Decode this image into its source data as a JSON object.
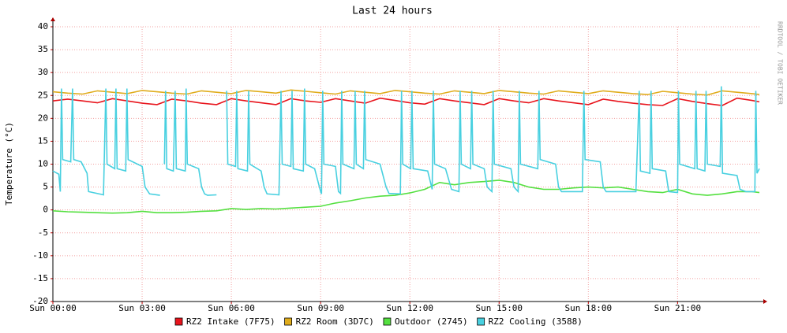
{
  "chart_data": {
    "type": "line",
    "title": "Last 24 hours",
    "y_label": "Temperature (°C)",
    "side_text": "RRDTOOL / TOBI OETIKER",
    "xlim": [
      0,
      23.75
    ],
    "ylim": [
      -20,
      40
    ],
    "xticks": [
      {
        "value": 0,
        "label": "Sun 00:00"
      },
      {
        "value": 3,
        "label": "Sun 03:00"
      },
      {
        "value": 6,
        "label": "Sun 06:00"
      },
      {
        "value": 9,
        "label": "Sun 09:00"
      },
      {
        "value": 12,
        "label": "Sun 12:00"
      },
      {
        "value": 15,
        "label": "Sun 15:00"
      },
      {
        "value": 18,
        "label": "Sun 18:00"
      },
      {
        "value": 21,
        "label": "Sun 21:00"
      }
    ],
    "yticks": [
      -20,
      -15,
      -10,
      -5,
      0,
      5,
      10,
      15,
      20,
      25,
      30,
      35,
      40
    ],
    "grid": true,
    "series": [
      {
        "name": "RZ2 Intake (7F75)",
        "color": "#e8141c",
        "x": [
          0,
          0.5,
          1,
          1.5,
          2,
          2.5,
          3,
          3.5,
          4,
          4.5,
          5,
          5.5,
          6,
          6.5,
          7,
          7.5,
          8,
          8.5,
          9,
          9.5,
          10,
          10.5,
          11,
          11.5,
          12,
          12.5,
          13,
          13.5,
          14,
          14.5,
          15,
          15.5,
          16,
          16.5,
          17,
          17.5,
          18,
          18.5,
          19,
          19.5,
          20,
          20.5,
          21,
          21.5,
          22,
          22.5,
          23,
          23.5,
          23.75
        ],
        "values": [
          23.8,
          24.2,
          23.8,
          23.4,
          24.3,
          23.8,
          23.3,
          23.0,
          24.2,
          23.8,
          23.3,
          23.0,
          24.3,
          23.8,
          23.4,
          23.0,
          24.3,
          23.8,
          23.5,
          24.3,
          23.8,
          23.3,
          24.4,
          23.9,
          23.4,
          23.1,
          24.3,
          23.8,
          23.4,
          23.0,
          24.3,
          23.8,
          23.4,
          24.3,
          23.8,
          23.4,
          23.0,
          24.2,
          23.7,
          23.3,
          23.0,
          22.8,
          24.3,
          23.7,
          23.2,
          22.8,
          24.4,
          23.9,
          23.6
        ]
      },
      {
        "name": "RZ2 Room (3D7C)",
        "color": "#e0ac1c",
        "x": [
          0,
          0.5,
          1,
          1.5,
          2,
          2.5,
          3,
          3.5,
          4,
          4.5,
          5,
          5.5,
          6,
          6.5,
          7,
          7.5,
          8,
          8.5,
          9,
          9.5,
          10,
          10.5,
          11,
          11.5,
          12,
          12.5,
          13,
          13.5,
          14,
          14.5,
          15,
          15.5,
          16,
          16.5,
          17,
          17.5,
          18,
          18.5,
          19,
          19.5,
          20,
          20.5,
          21,
          21.5,
          22,
          22.5,
          23,
          23.5,
          23.75
        ],
        "values": [
          25.8,
          25.5,
          25.3,
          26.0,
          25.7,
          25.4,
          26.1,
          25.8,
          25.5,
          25.3,
          26.0,
          25.7,
          25.4,
          26.1,
          25.8,
          25.5,
          26.2,
          25.9,
          25.6,
          25.3,
          26.0,
          25.7,
          25.4,
          26.1,
          25.8,
          25.5,
          25.3,
          26.0,
          25.7,
          25.4,
          26.1,
          25.8,
          25.5,
          25.3,
          26.0,
          25.7,
          25.4,
          26.0,
          25.7,
          25.4,
          25.2,
          25.9,
          25.6,
          25.3,
          25.1,
          26.0,
          25.7,
          25.4,
          25.2
        ]
      },
      {
        "name": "Outdoor (2745)",
        "color": "#54e040",
        "x": [
          0,
          0.5,
          1,
          1.5,
          2,
          2.5,
          3,
          3.5,
          4,
          4.5,
          5,
          5.5,
          6,
          6.5,
          7,
          7.5,
          8,
          8.5,
          9,
          9.5,
          10,
          10.5,
          11,
          11.5,
          12,
          12.5,
          13,
          13.5,
          14,
          14.5,
          15,
          15.5,
          16,
          16.5,
          17,
          17.5,
          18,
          18.5,
          19,
          19.5,
          20,
          20.5,
          21,
          21.5,
          22,
          22.5,
          23,
          23.5,
          23.75
        ],
        "values": [
          -0.2,
          -0.4,
          -0.5,
          -0.6,
          -0.7,
          -0.6,
          -0.3,
          -0.6,
          -0.6,
          -0.5,
          -0.3,
          -0.2,
          0.3,
          0.1,
          0.3,
          0.2,
          0.4,
          0.6,
          0.8,
          1.5,
          2.0,
          2.6,
          3.0,
          3.2,
          3.7,
          4.5,
          6.0,
          5.5,
          6.0,
          6.2,
          6.5,
          6.0,
          5.0,
          4.5,
          4.5,
          4.8,
          5.0,
          4.8,
          5.0,
          4.5,
          4.0,
          3.8,
          4.5,
          3.5,
          3.2,
          3.5,
          4.0,
          4.0,
          3.8
        ]
      },
      {
        "name": "RZ2 Cooling (3588)",
        "color": "#48d0e0",
        "x": [
          0,
          0.2,
          0.25,
          0.29,
          0.33,
          0.6,
          0.66,
          0.7,
          0.95,
          1.15,
          1.2,
          1.7,
          1.78,
          1.82,
          2.08,
          2.12,
          2.16,
          2.45,
          2.49,
          2.53,
          3.0,
          3.1,
          3.25,
          3.6,
          3.7,
          3.75,
          3.79,
          3.83,
          4.05,
          4.11,
          4.15,
          4.45,
          4.48,
          4.52,
          4.9,
          5.0,
          5.1,
          5.2,
          5.5,
          5.6,
          5.84,
          5.88,
          6.14,
          6.18,
          6.22,
          6.54,
          6.58,
          6.62,
          7.0,
          7.1,
          7.2,
          7.6,
          7.67,
          7.71,
          8.0,
          8.04,
          8.08,
          8.42,
          8.46,
          8.5,
          8.8,
          9.0,
          9.03,
          9.07,
          9.11,
          9.5,
          9.6,
          9.67,
          9.71,
          9.75,
          10.12,
          10.16,
          10.2,
          10.44,
          10.48,
          10.52,
          11.0,
          11.2,
          11.3,
          11.68,
          11.72,
          11.76,
          12.03,
          12.07,
          12.11,
          12.6,
          12.75,
          12.79,
          12.83,
          13.2,
          13.4,
          13.65,
          13.69,
          13.73,
          14.04,
          14.08,
          14.12,
          14.5,
          14.6,
          14.76,
          14.8,
          14.84,
          15.4,
          15.5,
          15.64,
          15.68,
          15.72,
          16.3,
          16.34,
          16.38,
          16.9,
          17.0,
          17.1,
          17.8,
          17.85,
          17.89,
          18.4,
          18.5,
          18.6,
          19.2,
          19.4,
          19.6,
          19.71,
          19.75,
          20.07,
          20.11,
          20.15,
          20.6,
          20.7,
          21.0,
          21.03,
          21.07,
          21.58,
          21.62,
          21.66,
          21.92,
          21.96,
          22.0,
          22.43,
          22.47,
          22.51,
          23.0,
          23.1,
          23.3,
          23.6,
          23.63,
          23.67,
          23.75
        ],
        "values": [
          8.5,
          7.8,
          4,
          26.5,
          11,
          10.5,
          26.5,
          11,
          10.5,
          8,
          4,
          3.3,
          26.5,
          10,
          9,
          26.5,
          9,
          8.5,
          26.5,
          11,
          9.5,
          5,
          3.5,
          3.2,
          null,
          10,
          26,
          9,
          8.5,
          26,
          9,
          8.5,
          26.5,
          10,
          9,
          5,
          3.5,
          3.2,
          3.3,
          null,
          26,
          10,
          9.5,
          26,
          9,
          8.5,
          26,
          10,
          8.5,
          5,
          3.5,
          3.3,
          26,
          10,
          9.5,
          26,
          9,
          8.5,
          26.5,
          10,
          9,
          4,
          3.5,
          26,
          10,
          9.5,
          4,
          3.6,
          26,
          10,
          9,
          26,
          10,
          9,
          26,
          11,
          10,
          5,
          3.6,
          3.5,
          26,
          10,
          9,
          26,
          9,
          8.5,
          4.5,
          26,
          10,
          9,
          4.5,
          4,
          26,
          10,
          9,
          26,
          10,
          9,
          5,
          4,
          26,
          10,
          9,
          5,
          4,
          26,
          10,
          9,
          26,
          11,
          10,
          5,
          4,
          4,
          26,
          11,
          10.5,
          5,
          4,
          4,
          4,
          4,
          26,
          8.5,
          8,
          26,
          9,
          8.5,
          4,
          3.8,
          26,
          10,
          9,
          26,
          9,
          8.5,
          26,
          10,
          9.5,
          27,
          8,
          7.5,
          4.5,
          4,
          4,
          26,
          8,
          9
        ]
      }
    ]
  }
}
